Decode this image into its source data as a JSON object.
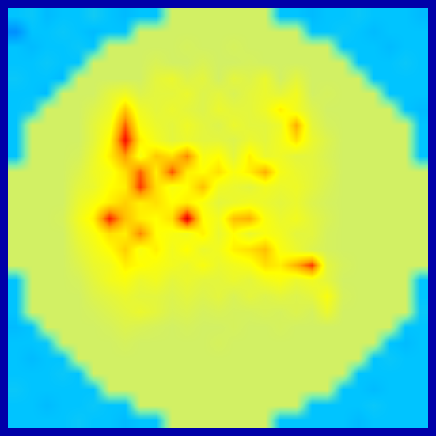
{
  "chart_data": {
    "type": "heatmap",
    "tick_labels": false,
    "grid": false,
    "zlim": [
      0,
      1
    ],
    "cells": [
      [
        0.3,
        0.31,
        0.29,
        0.3,
        0.3,
        0.32,
        0.3,
        0.29,
        0.3,
        0.3,
        0.55,
        0.55,
        0.55,
        0.55,
        0.55,
        0.55,
        0.55,
        0.3,
        0.3,
        0.29,
        0.3,
        0.3,
        0.31,
        0.3,
        0.3,
        0.3,
        0.29
      ],
      [
        0.24,
        0.3,
        0.3,
        0.31,
        0.3,
        0.29,
        0.3,
        0.3,
        0.55,
        0.55,
        0.55,
        0.55,
        0.55,
        0.55,
        0.55,
        0.55,
        0.55,
        0.55,
        0.55,
        0.3,
        0.3,
        0.31,
        0.3,
        0.29,
        0.3,
        0.3,
        0.3
      ],
      [
        0.3,
        0.29,
        0.3,
        0.3,
        0.31,
        0.3,
        0.55,
        0.55,
        0.55,
        0.55,
        0.55,
        0.56,
        0.55,
        0.55,
        0.56,
        0.55,
        0.55,
        0.55,
        0.55,
        0.55,
        0.55,
        0.3,
        0.3,
        0.3,
        0.29,
        0.3,
        0.3
      ],
      [
        0.3,
        0.3,
        0.31,
        0.3,
        0.3,
        0.55,
        0.55,
        0.55,
        0.55,
        0.57,
        0.55,
        0.55,
        0.57,
        0.55,
        0.55,
        0.56,
        0.55,
        0.55,
        0.55,
        0.55,
        0.55,
        0.55,
        0.3,
        0.3,
        0.3,
        0.31,
        0.3
      ],
      [
        0.31,
        0.3,
        0.3,
        0.29,
        0.55,
        0.55,
        0.55,
        0.55,
        0.55,
        0.6,
        0.62,
        0.58,
        0.6,
        0.55,
        0.6,
        0.58,
        0.62,
        0.55,
        0.6,
        0.55,
        0.55,
        0.55,
        0.55,
        0.3,
        0.3,
        0.3,
        0.3
      ],
      [
        0.3,
        0.3,
        0.29,
        0.55,
        0.55,
        0.55,
        0.6,
        0.63,
        0.58,
        0.6,
        0.6,
        0.62,
        0.58,
        0.6,
        0.57,
        0.6,
        0.62,
        0.6,
        0.64,
        0.55,
        0.56,
        0.55,
        0.55,
        0.55,
        0.3,
        0.3,
        0.3
      ],
      [
        0.3,
        0.31,
        0.55,
        0.55,
        0.55,
        0.58,
        0.62,
        0.75,
        0.63,
        0.6,
        0.62,
        0.6,
        0.58,
        0.62,
        0.6,
        0.6,
        0.63,
        0.7,
        0.64,
        0.58,
        0.55,
        0.55,
        0.55,
        0.55,
        0.55,
        0.3,
        0.29
      ],
      [
        0.3,
        0.55,
        0.55,
        0.55,
        0.55,
        0.6,
        0.65,
        0.85,
        0.66,
        0.62,
        0.6,
        0.63,
        0.6,
        0.58,
        0.62,
        0.6,
        0.6,
        0.63,
        0.78,
        0.6,
        0.56,
        0.55,
        0.55,
        0.55,
        0.55,
        0.55,
        0.3
      ],
      [
        0.3,
        0.55,
        0.55,
        0.55,
        0.55,
        0.6,
        0.68,
        0.92,
        0.7,
        0.64,
        0.6,
        0.62,
        0.6,
        0.6,
        0.58,
        0.62,
        0.6,
        0.64,
        0.72,
        0.62,
        0.58,
        0.55,
        0.55,
        0.55,
        0.55,
        0.55,
        0.3
      ],
      [
        0.3,
        0.55,
        0.55,
        0.55,
        0.56,
        0.62,
        0.7,
        0.8,
        0.66,
        0.75,
        0.72,
        0.82,
        0.65,
        0.68,
        0.6,
        0.7,
        0.62,
        0.63,
        0.6,
        0.6,
        0.57,
        0.55,
        0.55,
        0.55,
        0.55,
        0.55,
        0.3
      ],
      [
        0.55,
        0.55,
        0.55,
        0.55,
        0.58,
        0.63,
        0.66,
        0.72,
        0.85,
        0.7,
        0.86,
        0.7,
        0.68,
        0.72,
        0.66,
        0.7,
        0.78,
        0.65,
        0.62,
        0.6,
        0.58,
        0.55,
        0.55,
        0.55,
        0.55,
        0.55,
        0.55
      ],
      [
        0.55,
        0.55,
        0.55,
        0.55,
        0.6,
        0.62,
        0.68,
        0.7,
        0.88,
        0.72,
        0.66,
        0.68,
        0.76,
        0.64,
        0.62,
        0.6,
        0.64,
        0.62,
        0.63,
        0.6,
        0.57,
        0.55,
        0.55,
        0.55,
        0.55,
        0.55,
        0.55
      ],
      [
        0.55,
        0.55,
        0.55,
        0.55,
        0.62,
        0.66,
        0.7,
        0.74,
        0.7,
        0.72,
        0.68,
        0.7,
        0.66,
        0.6,
        0.62,
        0.64,
        0.62,
        0.6,
        0.62,
        0.58,
        0.56,
        0.55,
        0.55,
        0.55,
        0.55,
        0.55,
        0.55
      ],
      [
        0.55,
        0.55,
        0.55,
        0.56,
        0.64,
        0.7,
        0.9,
        0.76,
        0.7,
        0.68,
        0.72,
        0.95,
        0.68,
        0.64,
        0.76,
        0.78,
        0.66,
        0.62,
        0.64,
        0.6,
        0.57,
        0.55,
        0.55,
        0.55,
        0.55,
        0.55,
        0.55
      ],
      [
        0.55,
        0.55,
        0.55,
        0.55,
        0.62,
        0.66,
        0.72,
        0.7,
        0.82,
        0.68,
        0.66,
        0.64,
        0.7,
        0.62,
        0.68,
        0.62,
        0.66,
        0.64,
        0.6,
        0.6,
        0.56,
        0.55,
        0.55,
        0.55,
        0.55,
        0.55,
        0.55
      ],
      [
        0.55,
        0.55,
        0.55,
        0.55,
        0.6,
        0.64,
        0.68,
        0.74,
        0.66,
        0.7,
        0.64,
        0.68,
        0.62,
        0.64,
        0.7,
        0.72,
        0.76,
        0.66,
        0.62,
        0.58,
        0.56,
        0.55,
        0.55,
        0.55,
        0.55,
        0.55,
        0.55
      ],
      [
        0.55,
        0.55,
        0.55,
        0.55,
        0.58,
        0.62,
        0.64,
        0.7,
        0.68,
        0.66,
        0.64,
        0.62,
        0.66,
        0.62,
        0.64,
        0.66,
        0.72,
        0.7,
        0.78,
        0.88,
        0.6,
        0.56,
        0.55,
        0.55,
        0.55,
        0.55,
        0.55
      ],
      [
        0.3,
        0.55,
        0.55,
        0.55,
        0.56,
        0.6,
        0.64,
        0.66,
        0.62,
        0.64,
        0.6,
        0.62,
        0.6,
        0.6,
        0.62,
        0.6,
        0.64,
        0.66,
        0.62,
        0.64,
        0.6,
        0.55,
        0.55,
        0.55,
        0.55,
        0.55,
        0.3
      ],
      [
        0.3,
        0.55,
        0.55,
        0.55,
        0.55,
        0.58,
        0.6,
        0.62,
        0.6,
        0.6,
        0.58,
        0.6,
        0.58,
        0.6,
        0.57,
        0.6,
        0.58,
        0.6,
        0.58,
        0.6,
        0.66,
        0.56,
        0.55,
        0.55,
        0.55,
        0.55,
        0.3
      ],
      [
        0.3,
        0.55,
        0.55,
        0.55,
        0.55,
        0.56,
        0.58,
        0.6,
        0.62,
        0.6,
        0.57,
        0.58,
        0.56,
        0.57,
        0.56,
        0.56,
        0.57,
        0.56,
        0.58,
        0.56,
        0.62,
        0.55,
        0.55,
        0.55,
        0.55,
        0.55,
        0.31
      ],
      [
        0.29,
        0.3,
        0.55,
        0.55,
        0.55,
        0.55,
        0.56,
        0.58,
        0.57,
        0.56,
        0.55,
        0.56,
        0.55,
        0.55,
        0.56,
        0.55,
        0.55,
        0.56,
        0.55,
        0.55,
        0.55,
        0.55,
        0.55,
        0.55,
        0.55,
        0.3,
        0.3
      ],
      [
        0.3,
        0.3,
        0.31,
        0.55,
        0.55,
        0.55,
        0.55,
        0.56,
        0.55,
        0.55,
        0.55,
        0.55,
        0.55,
        0.56,
        0.55,
        0.55,
        0.55,
        0.55,
        0.55,
        0.55,
        0.55,
        0.55,
        0.55,
        0.55,
        0.3,
        0.29,
        0.3
      ],
      [
        0.3,
        0.29,
        0.3,
        0.3,
        0.55,
        0.55,
        0.55,
        0.55,
        0.55,
        0.55,
        0.55,
        0.55,
        0.55,
        0.55,
        0.55,
        0.55,
        0.55,
        0.55,
        0.55,
        0.55,
        0.55,
        0.55,
        0.55,
        0.3,
        0.31,
        0.3,
        0.3
      ],
      [
        0.3,
        0.3,
        0.3,
        0.31,
        0.3,
        0.55,
        0.55,
        0.55,
        0.55,
        0.55,
        0.55,
        0.55,
        0.55,
        0.55,
        0.55,
        0.55,
        0.55,
        0.55,
        0.55,
        0.55,
        0.55,
        0.55,
        0.3,
        0.3,
        0.3,
        0.3,
        0.3
      ],
      [
        0.31,
        0.3,
        0.3,
        0.3,
        0.3,
        0.3,
        0.55,
        0.55,
        0.55,
        0.55,
        0.55,
        0.55,
        0.55,
        0.55,
        0.55,
        0.55,
        0.55,
        0.55,
        0.55,
        0.55,
        0.55,
        0.3,
        0.3,
        0.29,
        0.3,
        0.3,
        0.3
      ],
      [
        0.3,
        0.3,
        0.29,
        0.3,
        0.3,
        0.31,
        0.3,
        0.3,
        0.55,
        0.55,
        0.55,
        0.55,
        0.55,
        0.55,
        0.55,
        0.55,
        0.55,
        0.55,
        0.55,
        0.3,
        0.3,
        0.3,
        0.3,
        0.31,
        0.3,
        0.3,
        0.3
      ],
      [
        0.3,
        0.3,
        0.3,
        0.3,
        0.31,
        0.3,
        0.3,
        0.29,
        0.3,
        0.3,
        0.55,
        0.55,
        0.55,
        0.55,
        0.55,
        0.55,
        0.55,
        0.3,
        0.3,
        0.3,
        0.3,
        0.3,
        0.29,
        0.3,
        0.3,
        0.3,
        0.3
      ]
    ]
  }
}
